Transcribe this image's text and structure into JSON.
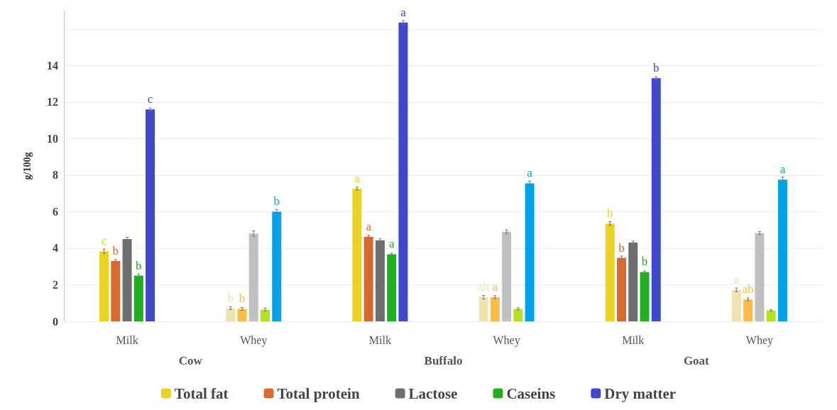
{
  "chart_data": {
    "type": "bar",
    "ylabel": "g/100g",
    "categories": [
      "Milk",
      "Whey",
      "Milk",
      "Whey",
      "Milk",
      "Whey"
    ],
    "series": [
      {
        "name": "Total fat",
        "color": "#ecd321",
        "colors": [
          "#ecd321",
          "#efe3b0",
          "#ecd321",
          "#efe3b0",
          "#ecd321",
          "#efe3b0"
        ],
        "values": [
          3.83,
          0.72,
          7.26,
          1.32,
          5.35,
          1.72
        ],
        "errors": [
          0.12,
          0.08,
          0.08,
          0.1,
          0.1,
          0.1
        ],
        "value_labels": [
          "c",
          "b",
          "a",
          "ab",
          "b",
          "a"
        ]
      },
      {
        "name": "Total protein",
        "color": "#d9692f",
        "colors": [
          "#d9692f",
          "#fbbd43",
          "#d9692f",
          "#fbbd43",
          "#d9692f",
          "#fbbd43"
        ],
        "values": [
          3.3,
          0.68,
          4.63,
          1.32,
          3.47,
          1.2
        ],
        "errors": [
          0.08,
          0.08,
          0.08,
          0.08,
          0.1,
          0.08
        ],
        "value_labels": [
          "b",
          "b",
          "a",
          "a",
          "b",
          "ab"
        ]
      },
      {
        "name": "Lactose",
        "color": "#6e6e6e",
        "colors": [
          "#6e6e6e",
          "#c0c0c0",
          "#6e6e6e",
          "#c0c0c0",
          "#6e6e6e",
          "#c0c0c0"
        ],
        "values": [
          4.5,
          4.8,
          4.43,
          4.9,
          4.31,
          4.83
        ],
        "errors": [
          0.1,
          0.15,
          0.1,
          0.1,
          0.08,
          0.08
        ]
      },
      {
        "name": "Caseins",
        "color": "#22ae1f",
        "colors": [
          "#22ae1f",
          "#b3e21f",
          "#22ae1f",
          "#b3e21f",
          "#22ae1f",
          "#b3e21f"
        ],
        "values": [
          2.5,
          0.64,
          3.67,
          0.68,
          2.7,
          0.6
        ],
        "errors": [
          0.1,
          0.08,
          0.06,
          0.06,
          0.06,
          0.05
        ],
        "value_labels": [
          "b",
          null,
          "a",
          null,
          "b",
          null
        ]
      },
      {
        "name": "Dry matter",
        "color": "#3f48cc",
        "colors": [
          "#3f48cc",
          "#00a2e8",
          "#3f48cc",
          "#00a2e8",
          "#3f48cc",
          "#00a2e8"
        ],
        "values": [
          11.6,
          6.0,
          16.35,
          7.55,
          13.3,
          7.75
        ],
        "errors": [
          0.08,
          0.12,
          0.1,
          0.12,
          0.08,
          0.15
        ],
        "value_labels": [
          "c",
          "b",
          "a",
          "a",
          "b",
          "a"
        ]
      }
    ],
    "ylim": [
      0,
      17
    ],
    "yticks": [
      0,
      2,
      4,
      6,
      8,
      10,
      12,
      14,
      {
        "value": 16,
        "label": null
      }
    ],
    "grid": "y",
    "legend": "bottom",
    "annotations": [
      "Cow",
      "Buffalo",
      "Goat"
    ]
  }
}
